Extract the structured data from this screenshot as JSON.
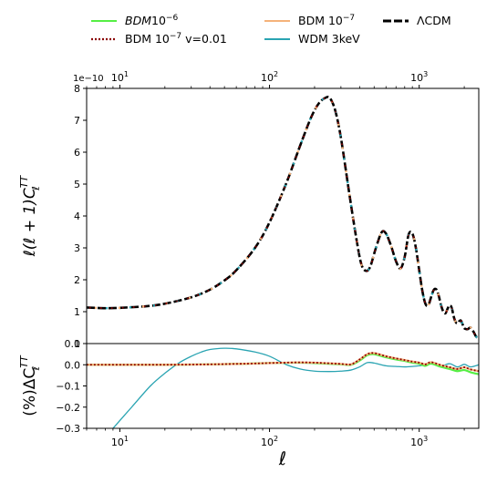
{
  "chart_data": {
    "type": "line",
    "legend": {
      "placement": "top-center",
      "entries": [
        {
          "key": "bdm6",
          "label_main": "BDM",
          "label_exp": "10",
          "label_sup": "−6",
          "color": "#55ee44",
          "style": "solid"
        },
        {
          "key": "bdm7",
          "label_main": "BDM 10",
          "label_sup": "−7",
          "color": "#f5b27a",
          "style": "dashed"
        },
        {
          "key": "lcdm",
          "label_main": "ΛCDM",
          "color": "#000000",
          "style": "solid-thick"
        },
        {
          "key": "bdm7v",
          "label_main": "BDM 10",
          "label_sup": "−7",
          "label_tail": " v=0.01",
          "color": "#8b0000",
          "style": "dotted"
        },
        {
          "key": "wdm",
          "label_main": "WDM 3keV",
          "color": "#2aa4b2",
          "style": "solid"
        }
      ]
    },
    "top_panel": {
      "ylabel": "ℓ(ℓ + 1)C",
      "ylabel_sup": "TT",
      "ylabel_sub": "ℓ",
      "offset_text": "1e−10",
      "ylim": [
        0,
        8
      ],
      "yticks": [
        "0",
        "1",
        "2",
        "3",
        "4",
        "5",
        "6",
        "7",
        "8"
      ],
      "series": [
        {
          "name": "ΛCDM",
          "x": [
            6,
            8,
            10,
            15,
            20,
            30,
            40,
            50,
            60,
            80,
            100,
            130,
            160,
            190,
            215,
            240,
            255,
            275,
            300,
            340,
            380,
            410,
            440,
            470,
            510,
            560,
            600,
            650,
            700,
            750,
            800,
            850,
            900,
            950,
            1000,
            1050,
            1100,
            1150,
            1200,
            1250,
            1300,
            1350,
            1400,
            1450,
            1500,
            1550,
            1600,
            1650,
            1700,
            1750,
            1800,
            1850,
            1900,
            1950,
            2000,
            2100,
            2200,
            2300,
            2400,
            2500
          ],
          "y": [
            1.13,
            1.11,
            1.12,
            1.17,
            1.25,
            1.45,
            1.69,
            1.98,
            2.3,
            3.0,
            3.8,
            5.05,
            6.2,
            7.1,
            7.55,
            7.72,
            7.68,
            7.3,
            6.45,
            4.75,
            3.3,
            2.5,
            2.28,
            2.4,
            2.95,
            3.48,
            3.45,
            3.05,
            2.58,
            2.35,
            2.72,
            3.42,
            3.45,
            3.0,
            2.3,
            1.65,
            1.25,
            1.2,
            1.45,
            1.68,
            1.7,
            1.5,
            1.2,
            1.0,
            0.95,
            1.1,
            1.2,
            1.12,
            0.85,
            0.68,
            0.63,
            0.7,
            0.72,
            0.6,
            0.48,
            0.45,
            0.5,
            0.38,
            0.22,
            0.18
          ]
        }
      ]
    },
    "bottom_panel": {
      "ylabel": "(%)ΔC",
      "ylabel_sup": "TT",
      "ylabel_sub": "ℓ",
      "ylim": [
        -0.3,
        0.1
      ],
      "yticks": [
        "0.1",
        "0.0",
        "−0.1",
        "−0.2",
        "−0.3"
      ],
      "series": [
        {
          "name": "BDM 10−6",
          "x": [
            6,
            10,
            20,
            40,
            70,
            100,
            150,
            200,
            300,
            350,
            400,
            450,
            500,
            600,
            700,
            800,
            900,
            1000,
            1100,
            1200,
            1400,
            1600,
            1800,
            2000,
            2200,
            2500
          ],
          "y": [
            0.0,
            0.0,
            0.0,
            0.002,
            0.005,
            0.008,
            0.01,
            0.008,
            0.002,
            0.0,
            0.02,
            0.045,
            0.05,
            0.035,
            0.025,
            0.018,
            0.01,
            0.005,
            -0.005,
            0.005,
            -0.01,
            -0.02,
            -0.03,
            -0.025,
            -0.035,
            -0.045
          ]
        },
        {
          "name": "BDM 10−7",
          "x": [
            6,
            10,
            20,
            40,
            70,
            100,
            150,
            200,
            300,
            350,
            400,
            450,
            500,
            600,
            700,
            800,
            900,
            1000,
            1100,
            1200,
            1400,
            1600,
            1800,
            2000,
            2200,
            2500
          ],
          "y": [
            0.0,
            0.0,
            0.0,
            0.002,
            0.005,
            0.008,
            0.011,
            0.01,
            0.004,
            0.002,
            0.025,
            0.05,
            0.055,
            0.04,
            0.03,
            0.022,
            0.015,
            0.01,
            0.002,
            0.012,
            -0.002,
            -0.012,
            -0.02,
            -0.012,
            -0.022,
            -0.03
          ]
        },
        {
          "name": "BDM 10−7 v=0.01",
          "x": [
            6,
            10,
            20,
            40,
            70,
            100,
            150,
            200,
            300,
            350,
            400,
            450,
            500,
            600,
            700,
            800,
            900,
            1000,
            1100,
            1200,
            1400,
            1600,
            1800,
            2000,
            2200,
            2500
          ],
          "y": [
            0.0,
            0.0,
            0.0,
            0.002,
            0.005,
            0.008,
            0.011,
            0.01,
            0.004,
            0.002,
            0.025,
            0.05,
            0.055,
            0.04,
            0.03,
            0.022,
            0.015,
            0.01,
            0.002,
            0.012,
            -0.002,
            -0.012,
            -0.02,
            -0.012,
            -0.022,
            -0.03
          ]
        },
        {
          "name": "WDM 3keV",
          "x": [
            9,
            12,
            16,
            20,
            25,
            30,
            35,
            40,
            50,
            60,
            80,
            100,
            130,
            160,
            200,
            250,
            300,
            350,
            400,
            450,
            500,
            600,
            700,
            800,
            900,
            1000,
            1100,
            1200,
            1400,
            1600,
            1800,
            2000,
            2200,
            2500
          ],
          "y": [
            -0.3,
            -0.2,
            -0.1,
            -0.04,
            0.01,
            0.04,
            0.06,
            0.072,
            0.078,
            0.075,
            0.06,
            0.04,
            0.0,
            -0.02,
            -0.03,
            -0.032,
            -0.03,
            -0.025,
            -0.01,
            0.01,
            0.008,
            -0.005,
            -0.008,
            -0.01,
            -0.008,
            -0.005,
            0.0,
            0.01,
            -0.005,
            0.005,
            -0.01,
            0.002,
            -0.01,
            0.0
          ]
        }
      ]
    },
    "xaxis": {
      "label": "ℓ",
      "scale": "log",
      "xlim": [
        6,
        2500
      ],
      "ticks": [
        {
          "value": 10,
          "label": "10",
          "sup": "1"
        },
        {
          "value": 100,
          "label": "10",
          "sup": "2"
        },
        {
          "value": 1000,
          "label": "10",
          "sup": "3"
        }
      ]
    }
  }
}
